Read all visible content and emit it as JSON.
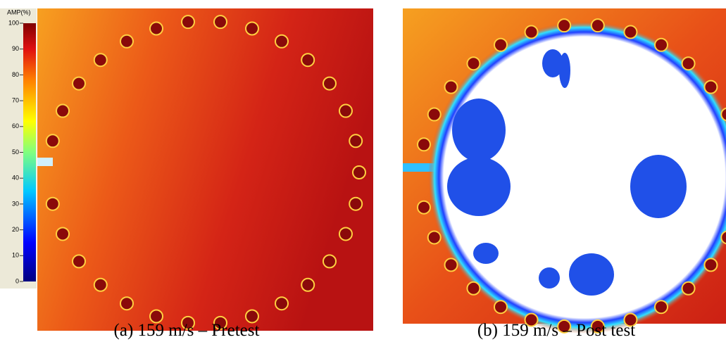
{
  "colorbar": {
    "label": "AMP(%)",
    "lim": [
      0,
      100
    ],
    "ticks": [
      0,
      10,
      20,
      30,
      40,
      50,
      60,
      70,
      80,
      90,
      100
    ]
  },
  "panels": [
    {
      "caption": "(a)  159 m/s – Pretest"
    },
    {
      "caption": "(b)  159 m/s – Post test"
    }
  ]
}
